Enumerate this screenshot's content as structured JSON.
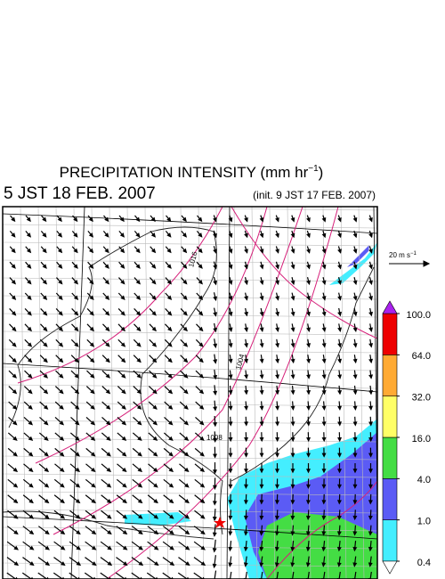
{
  "header": {
    "title": "PRECIPITATION INTENSITY (mm hr",
    "title_exponent": "−1",
    "title_close": ")",
    "valid_time": "5 JST 18 FEB. 2007",
    "init_time": "(init. 9 JST 17 FEB. 2007)"
  },
  "vector_legend": {
    "label": "20 m s",
    "exponent": "−1"
  },
  "colorbar": {
    "ticks": [
      {
        "value": 0.4,
        "label": "0.4"
      },
      {
        "value": 1,
        "label": "1.0"
      },
      {
        "value": 4,
        "label": "4.0"
      },
      {
        "value": 16,
        "label": "16.0"
      },
      {
        "value": 32,
        "label": "32.0"
      },
      {
        "value": 64,
        "label": "64.0"
      },
      {
        "value": 100,
        "label": "100.0"
      }
    ],
    "colors": [
      "#44eeff",
      "#5b5bf5",
      "#44dd44",
      "#ffff66",
      "#ffaa33",
      "#ee0000"
    ],
    "under_color": "#ffffff",
    "over_color": "#aa22ee"
  },
  "isobar_labels": [
    "1016",
    "1004",
    "1008"
  ]
}
